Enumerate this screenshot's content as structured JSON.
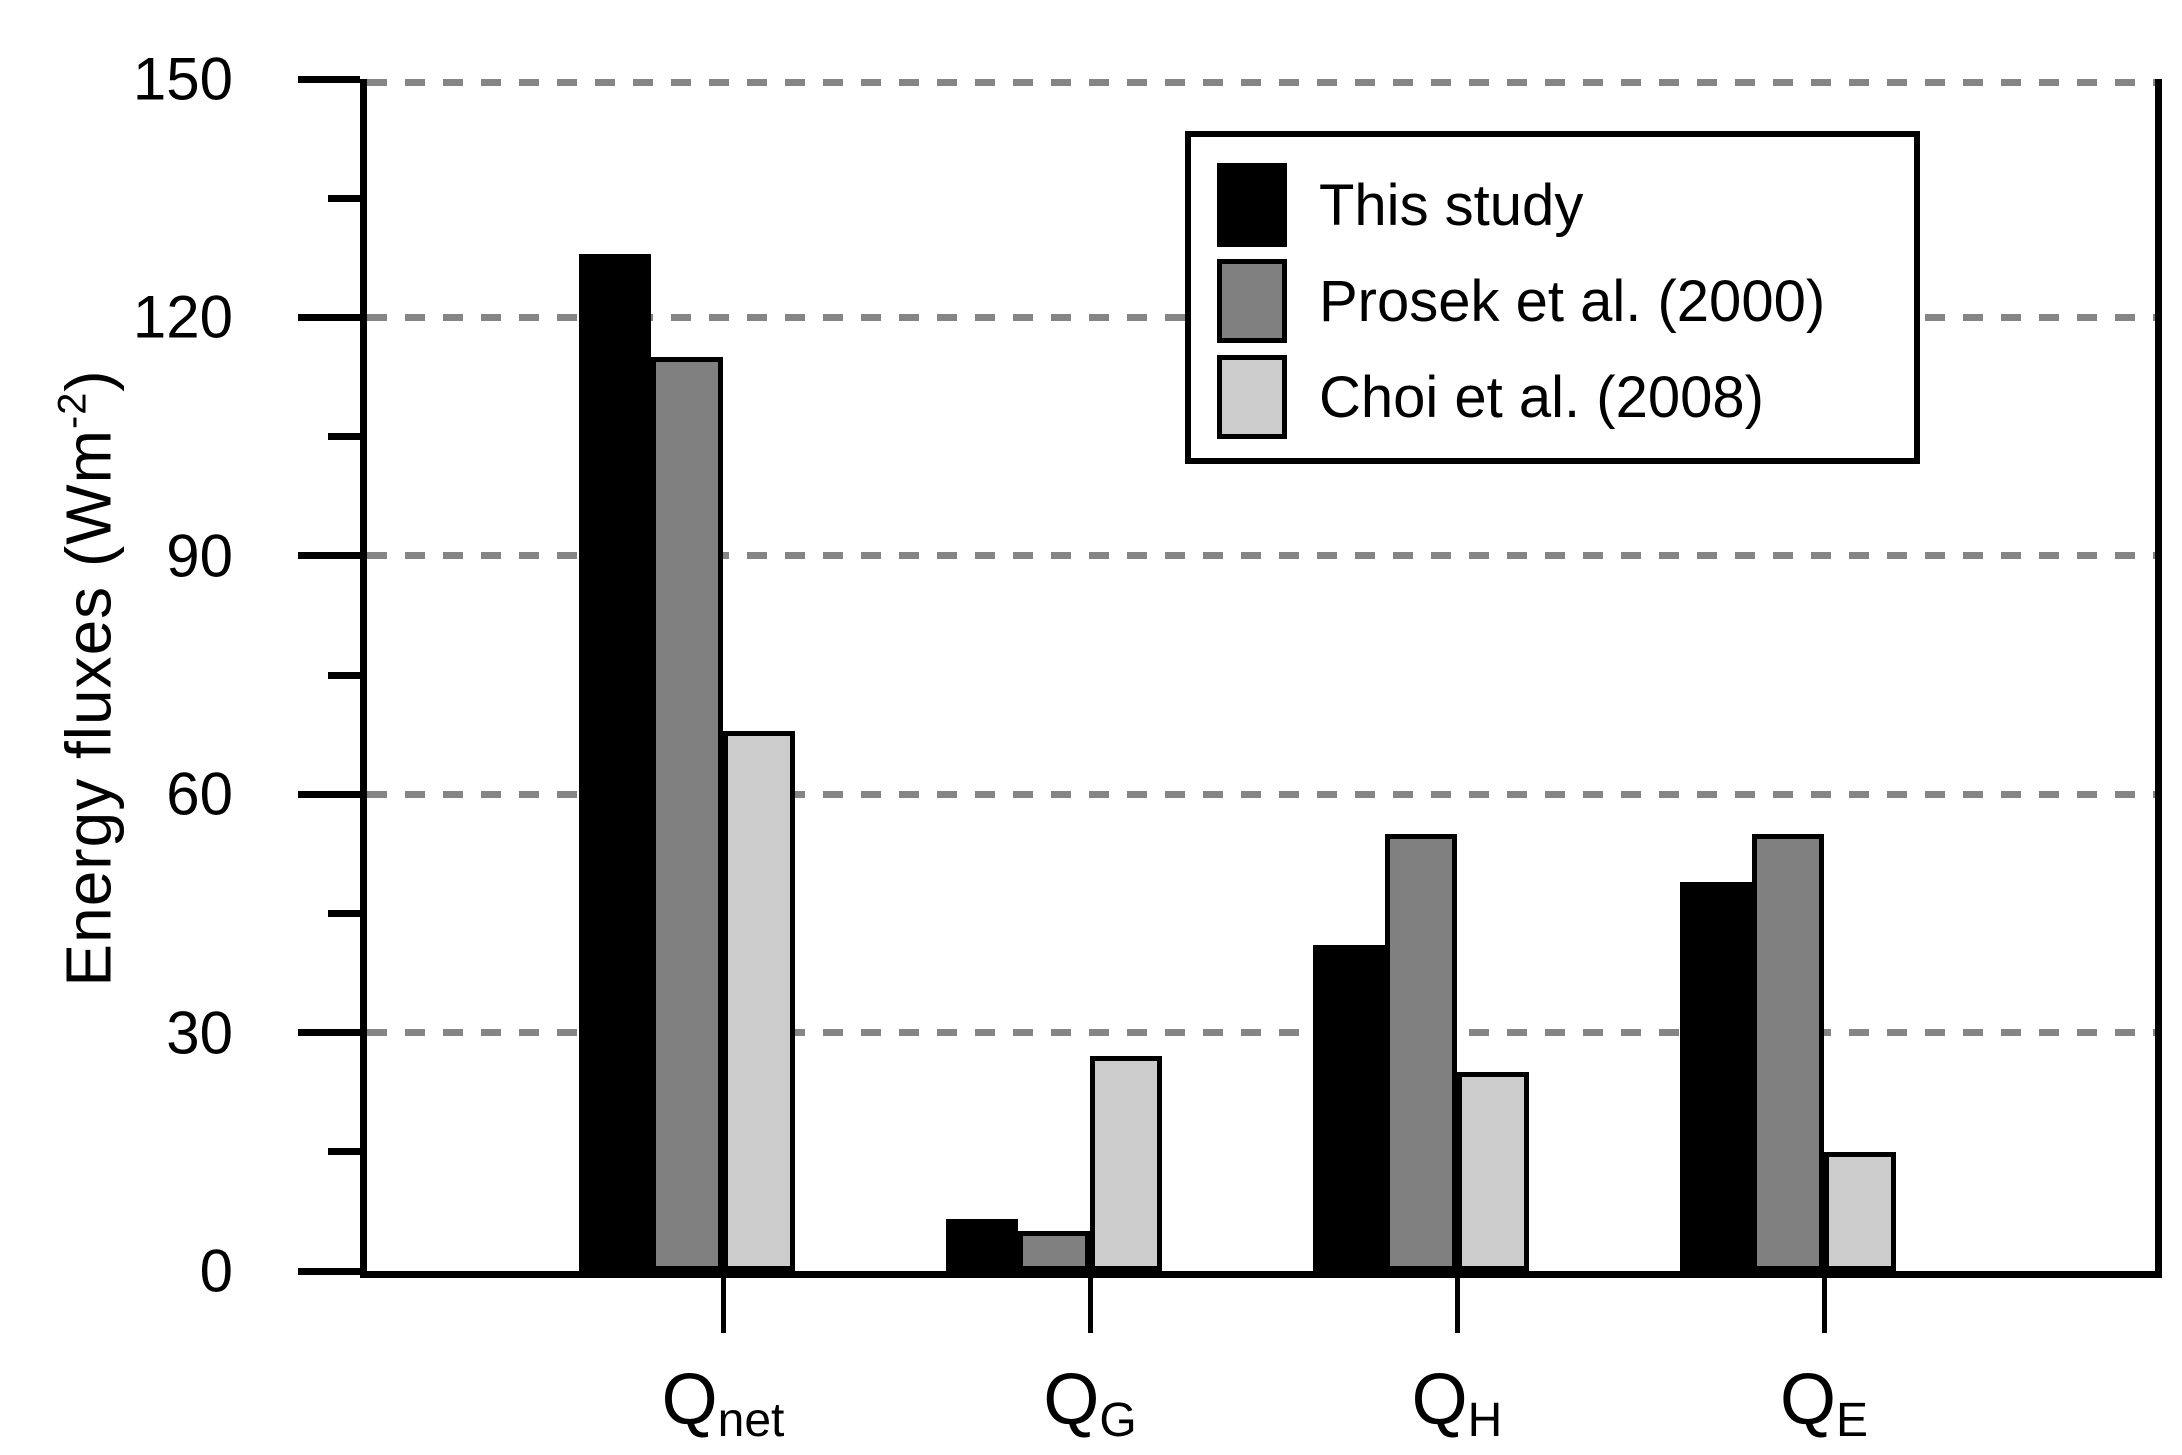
{
  "figure": {
    "background": "#ffffff"
  },
  "chart_data": {
    "type": "bar",
    "title": "",
    "ylabel": {
      "text": "Energy fluxes (Wm⁻²)",
      "prefix": "Energy fluxes (Wm",
      "superscript": "-2",
      "suffix": ")"
    },
    "ylim": [
      0,
      150
    ],
    "yticks": [
      0,
      30,
      60,
      90,
      120,
      150
    ],
    "yminorticks": [
      15,
      45,
      75,
      105,
      135
    ],
    "grid": {
      "axis": "y",
      "style": "dashed",
      "color": "#858585",
      "at": [
        30,
        60,
        90,
        120,
        150
      ]
    },
    "categories": [
      {
        "key": "Qnet",
        "base": "Q",
        "sub": "net"
      },
      {
        "key": "QG",
        "base": "Q",
        "sub": "G"
      },
      {
        "key": "QH",
        "base": "Q",
        "sub": "H"
      },
      {
        "key": "QE",
        "base": "Q",
        "sub": "E"
      }
    ],
    "series": [
      {
        "name": "This study",
        "color": "#000000",
        "values": [
          128,
          6.5,
          41,
          49
        ]
      },
      {
        "name": "Prosek et al. (2000)",
        "color": "#808080",
        "values": [
          115,
          5,
          55,
          55
        ]
      },
      {
        "name": "Choi et al. (2008)",
        "color": "#cccccc",
        "values": [
          68,
          27,
          25,
          15
        ]
      }
    ],
    "legend": {
      "position": "top-right",
      "border_color": "#000000",
      "background": "#ffffff"
    },
    "axis_color": "#000000"
  }
}
